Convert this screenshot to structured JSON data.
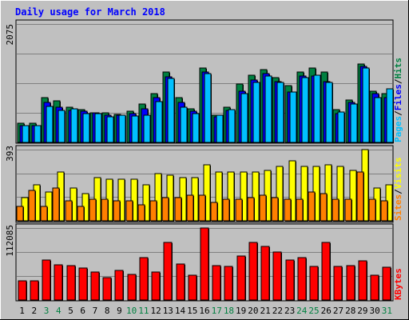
{
  "chart_data": [
    {
      "type": "bar",
      "title": "Daily usage for March 2018",
      "categories": [
        "1",
        "2",
        "3",
        "4",
        "5",
        "6",
        "7",
        "8",
        "9",
        "10",
        "11",
        "12",
        "13",
        "14",
        "15",
        "16",
        "17",
        "18",
        "19",
        "20",
        "21",
        "22",
        "23",
        "24",
        "25",
        "26",
        "27",
        "28",
        "29",
        "30",
        "31"
      ],
      "weekend_days": [
        "3",
        "4",
        "10",
        "11",
        "17",
        "18",
        "24",
        "25",
        "31"
      ],
      "y_tick_label": "2075",
      "ylim": [
        0,
        2075
      ],
      "right_label": [
        "Pages",
        "/",
        "Files",
        "/",
        "Hits"
      ],
      "colors": {
        "hits": "#008040",
        "files": "#0000ff",
        "pages": "#00c0ff"
      },
      "series": [
        {
          "name": "Hits",
          "values": [
            330,
            330,
            780,
            730,
            610,
            580,
            520,
            520,
            490,
            550,
            670,
            860,
            1230,
            780,
            590,
            1300,
            480,
            620,
            1030,
            1180,
            1280,
            1130,
            1000,
            1230,
            1300,
            1230,
            580,
            740,
            1370,
            900,
            850
          ]
        },
        {
          "name": "Files",
          "values": [
            300,
            300,
            700,
            620,
            560,
            550,
            520,
            480,
            470,
            510,
            590,
            780,
            1150,
            700,
            550,
            1230,
            450,
            560,
            900,
            1090,
            1200,
            1060,
            880,
            1160,
            1170,
            1060,
            510,
            700,
            1330,
            860,
            780
          ]
        },
        {
          "name": "Pages",
          "values": [
            290,
            290,
            630,
            560,
            590,
            510,
            500,
            450,
            480,
            460,
            470,
            710,
            1120,
            620,
            510,
            1200,
            470,
            570,
            860,
            1050,
            1170,
            1050,
            890,
            1140,
            1180,
            1050,
            530,
            670,
            1310,
            790,
            940
          ]
        }
      ]
    },
    {
      "type": "bar",
      "categories": [
        "1",
        "2",
        "3",
        "4",
        "5",
        "6",
        "7",
        "8",
        "9",
        "10",
        "11",
        "12",
        "13",
        "14",
        "15",
        "16",
        "17",
        "18",
        "19",
        "20",
        "21",
        "22",
        "23",
        "24",
        "25",
        "26",
        "27",
        "28",
        "29",
        "30",
        "31"
      ],
      "y_tick_label": "393",
      "ylim": [
        0,
        393
      ],
      "right_label": [
        "Sites",
        "/",
        "Visits"
      ],
      "colors": {
        "sites": "#ff8000",
        "visits": "#ffff00"
      },
      "series": [
        {
          "name": "Visits",
          "values": [
            130,
            200,
            160,
            270,
            180,
            150,
            240,
            230,
            230,
            230,
            200,
            260,
            250,
            240,
            240,
            310,
            270,
            270,
            270,
            270,
            280,
            300,
            330,
            300,
            300,
            310,
            300,
            280,
            393,
            180,
            200
          ]
        },
        {
          "name": "Sites",
          "values": [
            80,
            170,
            80,
            180,
            110,
            80,
            120,
            120,
            110,
            110,
            90,
            110,
            130,
            130,
            140,
            140,
            100,
            120,
            120,
            130,
            140,
            130,
            120,
            120,
            160,
            150,
            120,
            120,
            270,
            120,
            110
          ]
        }
      ]
    },
    {
      "type": "bar",
      "categories": [
        "1",
        "2",
        "3",
        "4",
        "5",
        "6",
        "7",
        "8",
        "9",
        "10",
        "11",
        "12",
        "13",
        "14",
        "15",
        "16",
        "17",
        "18",
        "19",
        "20",
        "21",
        "22",
        "23",
        "24",
        "25",
        "26",
        "27",
        "28",
        "29",
        "30",
        "31"
      ],
      "y_tick_label": "112085",
      "ylim": [
        0,
        112085
      ],
      "right_label": [
        "KBytes"
      ],
      "colors": {
        "kbytes": "#ff0000"
      },
      "series": [
        {
          "name": "KBytes",
          "values": [
            30000,
            30000,
            62000,
            55000,
            54000,
            50000,
            44000,
            35000,
            46000,
            40000,
            66000,
            44000,
            90000,
            56000,
            38000,
            112085,
            54000,
            52000,
            68000,
            90000,
            83000,
            75000,
            62000,
            66000,
            52000,
            90000,
            52000,
            53000,
            61000,
            39000,
            51000
          ]
        }
      ]
    }
  ]
}
